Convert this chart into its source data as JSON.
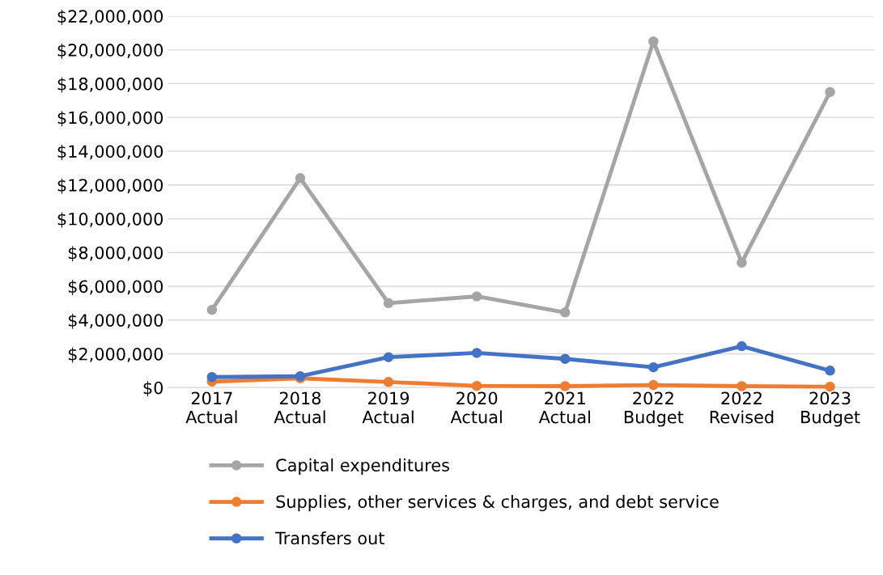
{
  "chart_data": {
    "type": "line",
    "categories": [
      "2017\nActual",
      "2018\nActual",
      "2019\nActual",
      "2020\nActual",
      "2021\nActual",
      "2022\nBudget",
      "2022\nRevised",
      "2023\nBudget"
    ],
    "series": [
      {
        "name": "Capital expenditures",
        "color": "#a5a5a5",
        "values": [
          4600000,
          12400000,
          5000000,
          5400000,
          4450000,
          20500000,
          7400000,
          17500000
        ]
      },
      {
        "name": "Supplies, other services & charges, and debt service",
        "color": "#ed7d31",
        "values": [
          350000,
          550000,
          330000,
          100000,
          80000,
          150000,
          80000,
          50000
        ]
      },
      {
        "name": "Transfers out",
        "color": "#4472c4",
        "values": [
          620000,
          670000,
          1800000,
          2050000,
          1700000,
          1200000,
          2450000,
          1000000
        ]
      }
    ],
    "ylim": [
      0,
      22000000
    ],
    "yticks": [
      {
        "value": 0,
        "label": "$0"
      },
      {
        "value": 2000000,
        "label": "$2,000,000"
      },
      {
        "value": 4000000,
        "label": "$4,000,000"
      },
      {
        "value": 6000000,
        "label": "$6,000,000"
      },
      {
        "value": 8000000,
        "label": "$8,000,000"
      },
      {
        "value": 10000000,
        "label": "$10,000,000"
      },
      {
        "value": 12000000,
        "label": "$12,000,000"
      },
      {
        "value": 14000000,
        "label": "$14,000,000"
      },
      {
        "value": 16000000,
        "label": "$16,000,000"
      },
      {
        "value": 18000000,
        "label": "$18,000,000"
      },
      {
        "value": 20000000,
        "label": "$20,000,000"
      },
      {
        "value": 22000000,
        "label": "$22,000,000"
      }
    ],
    "grid": "y",
    "legend": "bottom",
    "marker": "circle",
    "line_style": "solid"
  }
}
